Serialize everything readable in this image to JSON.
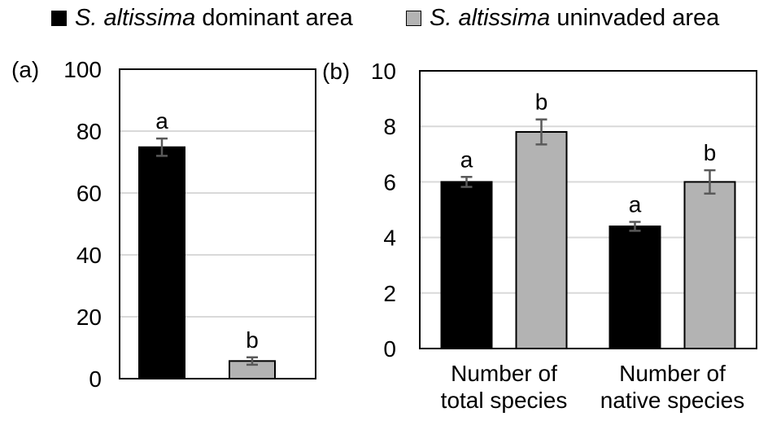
{
  "legend": {
    "items": [
      {
        "italic": "S. altissima",
        "rest": " dominant area",
        "color": "#000000"
      },
      {
        "italic": "S. altissima",
        "rest": " uninvaded area",
        "color": "#b3b3b3"
      }
    ]
  },
  "chart_data": [
    {
      "type": "bar",
      "panel_label": "(a)",
      "categories": [
        ""
      ],
      "ylim": [
        0,
        100
      ],
      "yticks": [
        0,
        20,
        40,
        60,
        80,
        100
      ],
      "grid": true,
      "series": [
        {
          "values": [
            74.8
          ],
          "errors": [
            2.8
          ],
          "letters": [
            "a"
          ],
          "color": "#000000"
        },
        {
          "values": [
            5.7
          ],
          "errors": [
            1.2
          ],
          "letters": [
            "b"
          ],
          "color": "#b3b3b3"
        }
      ]
    },
    {
      "type": "bar",
      "panel_label": "(b)",
      "categories": [
        [
          "Number of",
          "total species"
        ],
        [
          "Number of",
          "native species"
        ]
      ],
      "ylim": [
        0,
        10
      ],
      "yticks": [
        0,
        2,
        4,
        6,
        8,
        10
      ],
      "grid": true,
      "series": [
        {
          "values": [
            6.0,
            4.4
          ],
          "errors": [
            0.18,
            0.16
          ],
          "letters": [
            "a",
            "a"
          ],
          "color": "#000000"
        },
        {
          "values": [
            7.8,
            6.0
          ],
          "errors": [
            0.45,
            0.42
          ],
          "letters": [
            "b",
            "b"
          ],
          "color": "#b3b3b3"
        }
      ]
    }
  ]
}
